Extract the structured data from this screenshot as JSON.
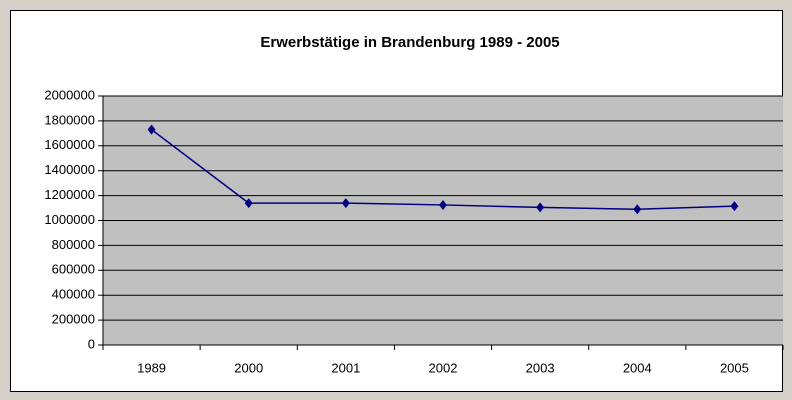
{
  "chart_data": {
    "type": "line",
    "title": "Erwerbstätige in Brandenburg 1989 - 2005",
    "categories": [
      "1989",
      "2000",
      "2001",
      "2002",
      "2003",
      "2004",
      "2005"
    ],
    "series": [
      {
        "name": "Erwerbstätige",
        "color": "#000080",
        "values": [
          1730000,
          1140000,
          1140000,
          1125000,
          1105000,
          1090000,
          1115000
        ]
      }
    ],
    "ylim": [
      0,
      2000000
    ],
    "yticks": [
      0,
      200000,
      400000,
      600000,
      800000,
      1000000,
      1200000,
      1400000,
      1600000,
      1800000,
      2000000
    ],
    "grid": true,
    "plot_background": "#c0c0c0"
  }
}
